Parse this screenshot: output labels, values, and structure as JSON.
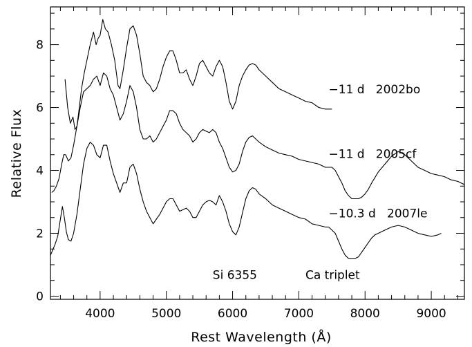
{
  "chart_data": {
    "type": "line",
    "xlabel": "Rest Wavelength (Å)",
    "ylabel": "Relative Flux",
    "xlim": [
      3250,
      9500
    ],
    "ylim": [
      -0.1,
      9.2
    ],
    "x_ticks": [
      4000,
      5000,
      6000,
      7000,
      8000,
      9000
    ],
    "x_tick_labels": [
      "4000",
      "5000",
      "6000",
      "7000",
      "8000",
      "9000"
    ],
    "y_ticks": [
      0,
      2,
      4,
      6,
      8
    ],
    "y_tick_labels": [
      "0",
      "2",
      "4",
      "6",
      "8"
    ],
    "grid": false,
    "legend": "none",
    "annotations": [
      {
        "text": "−11 d   2002bo",
        "x": 7450,
        "y": 6.45
      },
      {
        "text": "−11 d   2005cf",
        "x": 7450,
        "y": 4.4
      },
      {
        "text": "−10.3 d   2007le",
        "x": 7450,
        "y": 2.5
      },
      {
        "text": "Si 6355",
        "x": 5700,
        "y": 0.55
      },
      {
        "text": "Ca triplet",
        "x": 7100,
        "y": 0.55
      }
    ],
    "series": [
      {
        "x": [
          3470,
          3510,
          3550,
          3590,
          3620,
          3650,
          3680,
          3720,
          3760,
          3800,
          3850,
          3900,
          3940,
          3970,
          4000,
          4040,
          4080,
          4120,
          4170,
          4220,
          4270,
          4300,
          4350,
          4400,
          4450,
          4500,
          4550,
          4600,
          4650,
          4700,
          4750,
          4800,
          4850,
          4900,
          4950,
          5000,
          5050,
          5100,
          5150,
          5200,
          5250,
          5300,
          5350,
          5400,
          5450,
          5500,
          5550,
          5600,
          5650,
          5700,
          5750,
          5800,
          5850,
          5880,
          5900,
          5950,
          6000,
          6050,
          6100,
          6150,
          6200,
          6250,
          6300,
          6350,
          6400,
          6450,
          6500,
          6600,
          6700,
          6800,
          6900,
          7000,
          7100,
          7200,
          7300,
          7400,
          7500
        ],
        "values": [
          6.9,
          6.0,
          5.5,
          5.7,
          5.3,
          5.4,
          5.9,
          6.6,
          7.1,
          7.5,
          8.0,
          8.4,
          8.0,
          8.2,
          8.3,
          8.8,
          8.5,
          8.4,
          8.0,
          7.5,
          6.7,
          6.6,
          7.2,
          7.9,
          8.5,
          8.6,
          8.3,
          7.7,
          7.0,
          6.8,
          6.7,
          6.5,
          6.6,
          6.9,
          7.3,
          7.6,
          7.8,
          7.8,
          7.5,
          7.1,
          7.1,
          7.2,
          6.9,
          6.7,
          7.0,
          7.4,
          7.5,
          7.3,
          7.1,
          7.0,
          7.3,
          7.5,
          7.3,
          7.0,
          6.8,
          6.2,
          5.95,
          6.2,
          6.7,
          7.0,
          7.2,
          7.35,
          7.4,
          7.35,
          7.2,
          7.1,
          7.0,
          6.8,
          6.6,
          6.5,
          6.4,
          6.3,
          6.2,
          6.15,
          6.0,
          5.95,
          5.95
        ]
      },
      {
        "x": [
          3270,
          3300,
          3340,
          3380,
          3420,
          3450,
          3480,
          3520,
          3560,
          3600,
          3650,
          3700,
          3750,
          3800,
          3850,
          3900,
          3950,
          4000,
          4050,
          4100,
          4150,
          4200,
          4250,
          4300,
          4350,
          4400,
          4450,
          4500,
          4550,
          4600,
          4650,
          4700,
          4750,
          4800,
          4850,
          4900,
          4950,
          5000,
          5050,
          5100,
          5150,
          5200,
          5250,
          5300,
          5350,
          5400,
          5450,
          5500,
          5550,
          5600,
          5650,
          5700,
          5750,
          5800,
          5850,
          5900,
          5950,
          6000,
          6050,
          6100,
          6150,
          6200,
          6250,
          6300,
          6400,
          6500,
          6600,
          6700,
          6800,
          6900,
          7000,
          7100,
          7200,
          7300,
          7400,
          7500,
          7550,
          7600,
          7650,
          7700,
          7750,
          7800,
          7850,
          7900,
          7950,
          8000,
          8050,
          8100,
          8200,
          8300,
          8400,
          8500,
          8600,
          8700,
          8800,
          8900,
          9000,
          9100,
          9200,
          9300,
          9400,
          9500
        ],
        "values": [
          3.3,
          3.35,
          3.5,
          3.75,
          4.2,
          4.5,
          4.5,
          4.3,
          4.4,
          4.8,
          5.4,
          6.0,
          6.5,
          6.6,
          6.7,
          6.9,
          7.0,
          6.7,
          7.1,
          7.0,
          6.6,
          6.4,
          6.0,
          5.6,
          5.8,
          6.2,
          6.7,
          6.5,
          6.0,
          5.3,
          5.0,
          5.0,
          5.1,
          4.9,
          5.0,
          5.2,
          5.4,
          5.6,
          5.9,
          5.9,
          5.8,
          5.5,
          5.3,
          5.2,
          5.1,
          4.9,
          5.0,
          5.2,
          5.3,
          5.25,
          5.2,
          5.3,
          5.2,
          4.9,
          4.7,
          4.4,
          4.1,
          3.95,
          4.0,
          4.2,
          4.6,
          4.9,
          5.05,
          5.1,
          4.9,
          4.75,
          4.65,
          4.55,
          4.5,
          4.45,
          4.35,
          4.3,
          4.25,
          4.2,
          4.1,
          4.1,
          4.0,
          3.8,
          3.6,
          3.35,
          3.2,
          3.1,
          3.1,
          3.1,
          3.15,
          3.25,
          3.4,
          3.6,
          3.95,
          4.2,
          4.45,
          4.6,
          4.5,
          4.3,
          4.1,
          4.0,
          3.9,
          3.85,
          3.8,
          3.7,
          3.65,
          3.55
        ]
      },
      {
        "x": [
          3250,
          3280,
          3320,
          3360,
          3400,
          3430,
          3460,
          3490,
          3520,
          3560,
          3600,
          3650,
          3700,
          3750,
          3800,
          3850,
          3900,
          3950,
          4000,
          4050,
          4100,
          4150,
          4200,
          4250,
          4300,
          4350,
          4400,
          4450,
          4500,
          4550,
          4600,
          4650,
          4700,
          4750,
          4800,
          4850,
          4900,
          4950,
          5000,
          5050,
          5100,
          5150,
          5200,
          5250,
          5300,
          5350,
          5400,
          5450,
          5500,
          5550,
          5600,
          5650,
          5700,
          5750,
          5800,
          5850,
          5900,
          5950,
          6000,
          6050,
          6100,
          6150,
          6200,
          6250,
          6300,
          6350,
          6400,
          6500,
          6600,
          6700,
          6800,
          6900,
          7000,
          7100,
          7200,
          7300,
          7400,
          7450,
          7500,
          7550,
          7600,
          7650,
          7700,
          7750,
          7800,
          7850,
          7900,
          7950,
          8000,
          8050,
          8100,
          8150,
          8200,
          8300,
          8400,
          8500,
          8600,
          8700,
          8800,
          8900,
          9000,
          9100,
          9150
        ],
        "values": [
          1.3,
          1.45,
          1.65,
          1.9,
          2.45,
          2.85,
          2.5,
          2.05,
          1.8,
          1.75,
          2.0,
          2.6,
          3.4,
          4.2,
          4.7,
          4.9,
          4.8,
          4.5,
          4.4,
          4.8,
          4.8,
          4.3,
          3.9,
          3.6,
          3.3,
          3.6,
          3.6,
          4.1,
          4.2,
          3.9,
          3.4,
          3.0,
          2.7,
          2.5,
          2.3,
          2.45,
          2.6,
          2.8,
          3.0,
          3.1,
          3.1,
          2.9,
          2.7,
          2.75,
          2.8,
          2.7,
          2.5,
          2.5,
          2.7,
          2.9,
          3.0,
          3.05,
          3.0,
          2.9,
          3.2,
          3.0,
          2.7,
          2.3,
          2.05,
          1.95,
          2.2,
          2.65,
          3.1,
          3.35,
          3.45,
          3.4,
          3.25,
          3.1,
          2.9,
          2.8,
          2.7,
          2.6,
          2.5,
          2.45,
          2.3,
          2.25,
          2.2,
          2.2,
          2.1,
          2.0,
          1.75,
          1.5,
          1.3,
          1.2,
          1.2,
          1.2,
          1.25,
          1.4,
          1.55,
          1.7,
          1.85,
          1.95,
          2.0,
          2.1,
          2.2,
          2.25,
          2.2,
          2.1,
          2.0,
          1.95,
          1.9,
          1.95,
          2.0
        ]
      }
    ]
  }
}
